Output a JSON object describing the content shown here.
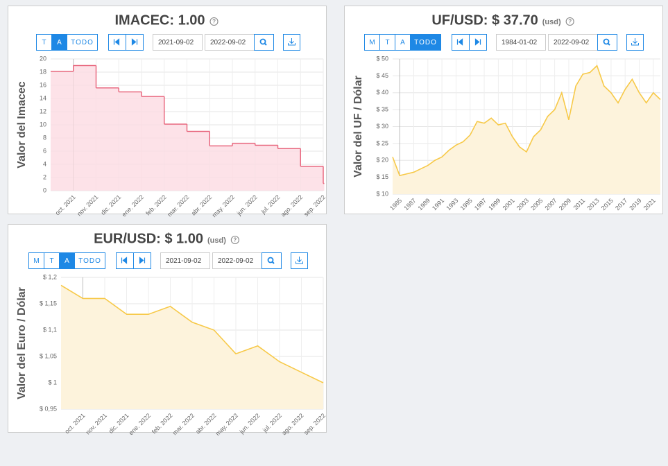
{
  "help_icon": "?",
  "panels": [
    {
      "period_buttons": [
        "T",
        "A",
        "TODO"
      ],
      "active_period": "A",
      "start_date": "2021-09-02",
      "end_date": "2022-09-02"
    },
    {
      "period_buttons": [
        "M",
        "T",
        "A",
        "TODO"
      ],
      "active_period": "TODO",
      "start_date": "1984-01-02",
      "end_date": "2022-09-02"
    },
    {
      "period_buttons": [
        "M",
        "T",
        "A",
        "TODO"
      ],
      "active_period": "A",
      "start_date": "2021-09-02",
      "end_date": "2022-09-02"
    }
  ],
  "chart_data": [
    {
      "type": "step",
      "title": "IMACEC: 1.00",
      "y_label": "Valor del Imacec",
      "color": "#e8687f",
      "fill": "#fddbe2",
      "categories": [
        null,
        "oct. 2021",
        "nov. 2021",
        "dic. 2021",
        "ene. 2022",
        "feb. 2022",
        "mar. 2022",
        "abr. 2022",
        "may. 2022",
        "jun. 2022",
        "jul. 2022",
        "ago. 2022",
        "sep. 2022"
      ],
      "values": [
        18.1,
        19,
        15.6,
        15,
        14.3,
        10.1,
        9,
        6.8,
        7.2,
        6.9,
        6.4,
        3.7,
        1.1
      ],
      "ylim": [
        0,
        20
      ],
      "yticks": [
        0,
        2,
        4,
        6,
        8,
        10,
        12,
        14,
        16,
        18,
        20
      ],
      "grid": true
    },
    {
      "type": "area",
      "title": "UF/USD: $ 37.70",
      "subtitle": "(usd)",
      "y_label": "Valor del UF / Dólar",
      "color": "#f7c948",
      "fill": "#fdf3dc",
      "x": [
        1984,
        1985,
        1986,
        1987,
        1988,
        1989,
        1990,
        1991,
        1992,
        1993,
        1994,
        1995,
        1996,
        1997,
        1998,
        1999,
        2000,
        2001,
        2002,
        2003,
        2004,
        2005,
        2006,
        2007,
        2008,
        2009,
        2010,
        2011,
        2012,
        2013,
        2014,
        2015,
        2016,
        2017,
        2018,
        2019,
        2020,
        2021,
        2022
      ],
      "values": [
        21,
        15.5,
        16,
        16.5,
        17.5,
        18.5,
        20,
        21,
        23,
        24.5,
        25.5,
        27.5,
        31.5,
        31,
        32.5,
        30.5,
        31,
        27,
        24,
        22.5,
        27,
        29,
        33,
        35,
        40,
        32,
        42,
        45.5,
        46,
        48,
        42,
        40,
        37,
        41,
        44,
        40,
        37,
        40,
        38
      ],
      "xlim": [
        1984,
        2022
      ],
      "xticks": [
        1985,
        1987,
        1989,
        1991,
        1993,
        1995,
        1997,
        1999,
        2001,
        2003,
        2005,
        2007,
        2009,
        2011,
        2013,
        2015,
        2017,
        2019,
        2021
      ],
      "ylim": [
        10,
        50
      ],
      "yticks": [
        {
          "value": 10,
          "label": "$ 10"
        },
        {
          "value": 15,
          "label": "$ 15"
        },
        {
          "value": 20,
          "label": "$ 20"
        },
        {
          "value": 25,
          "label": "$ 25"
        },
        {
          "value": 30,
          "label": "$ 30"
        },
        {
          "value": 35,
          "label": "$ 35"
        },
        {
          "value": 40,
          "label": "$ 40"
        },
        {
          "value": 45,
          "label": "$ 45"
        },
        {
          "value": 50,
          "label": "$ 50"
        }
      ],
      "grid": true
    },
    {
      "type": "area",
      "title": "EUR/USD: $ 1.00",
      "subtitle": "(usd)",
      "y_label": "Valor del Euro / Dólar",
      "color": "#f7c948",
      "fill": "#fdf3dc",
      "categories": [
        null,
        "oct. 2021",
        "nov. 2021",
        "dic. 2021",
        "ene. 2022",
        "feb. 2022",
        "mar. 2022",
        "abr. 2022",
        "may. 2022",
        "jun. 2022",
        "jul. 2022",
        "ago. 2022",
        "sep. 2022"
      ],
      "values": [
        1.185,
        1.16,
        1.16,
        1.13,
        1.13,
        1.145,
        1.115,
        1.1,
        1.055,
        1.07,
        1.04,
        1.02,
        1.0
      ],
      "ylim": [
        0.95,
        1.2
      ],
      "yticks": [
        {
          "value": 0.95,
          "label": "$ 0,95"
        },
        {
          "value": 1,
          "label": "$ 1"
        },
        {
          "value": 1.05,
          "label": "$ 1,05"
        },
        {
          "value": 1.1,
          "label": "$ 1,1"
        },
        {
          "value": 1.15,
          "label": "$ 1,15"
        },
        {
          "value": 1.2,
          "label": "$ 1,2"
        }
      ],
      "grid": true
    }
  ]
}
